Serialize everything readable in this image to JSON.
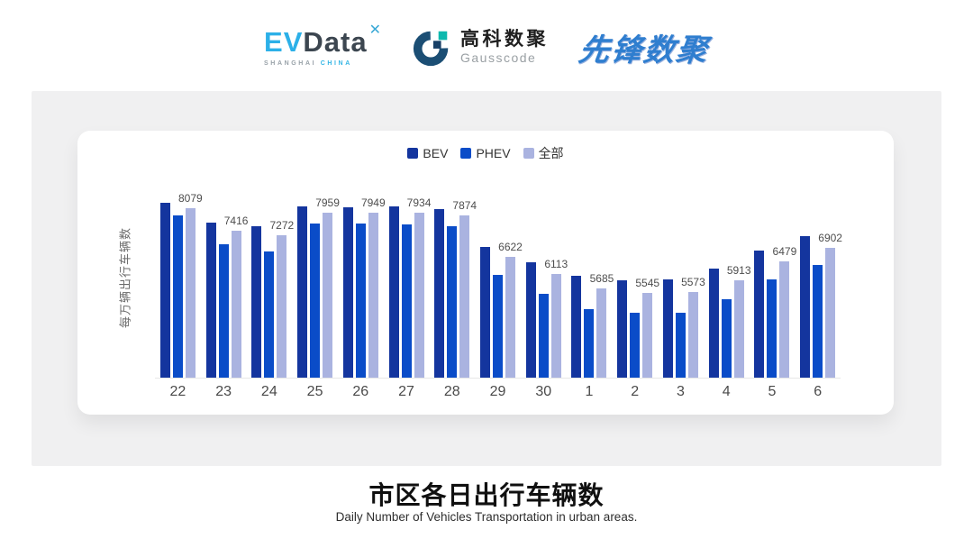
{
  "header": {
    "evdata": {
      "ev": "EV",
      "data": "Data",
      "mark": "✕",
      "sub_left": "SHANGHAI",
      "sub_right": "CHINA"
    },
    "gausscode": {
      "cn": "高科数聚",
      "en": "Gausscode"
    },
    "xianfeng": "先锋数聚"
  },
  "chart_data": {
    "type": "bar",
    "title": "市区各日出行车辆数",
    "subtitle": "Daily Number of Vehicles Transportation in urban areas.",
    "ylabel": "每万辆出行车辆数",
    "xlabel": "",
    "categories": [
      "22",
      "23",
      "24",
      "25",
      "26",
      "27",
      "28",
      "29",
      "30",
      "1",
      "2",
      "3",
      "4",
      "5",
      "6"
    ],
    "series": [
      {
        "name": "BEV",
        "color": "#14359e",
        "values": [
          8240,
          7660,
          7550,
          8140,
          8120,
          8130,
          8050,
          6920,
          6470,
          6060,
          5920,
          5950,
          6260,
          6800,
          7230
        ]
      },
      {
        "name": "PHEV",
        "color": "#0a4cc8",
        "values": [
          7860,
          6990,
          6780,
          7630,
          7610,
          7600,
          7550,
          6080,
          5510,
          5050,
          4950,
          4950,
          5340,
          5940,
          6370
        ]
      },
      {
        "name": "全部",
        "color": "#aab3e0",
        "values": [
          8079,
          7416,
          7272,
          7959,
          7949,
          7934,
          7874,
          6622,
          6113,
          5685,
          5545,
          5573,
          5913,
          6479,
          6902
        ],
        "data_labels": true
      }
    ],
    "ylim": [
      3000,
      9000
    ],
    "grid": false,
    "legend_position": "top-center"
  }
}
